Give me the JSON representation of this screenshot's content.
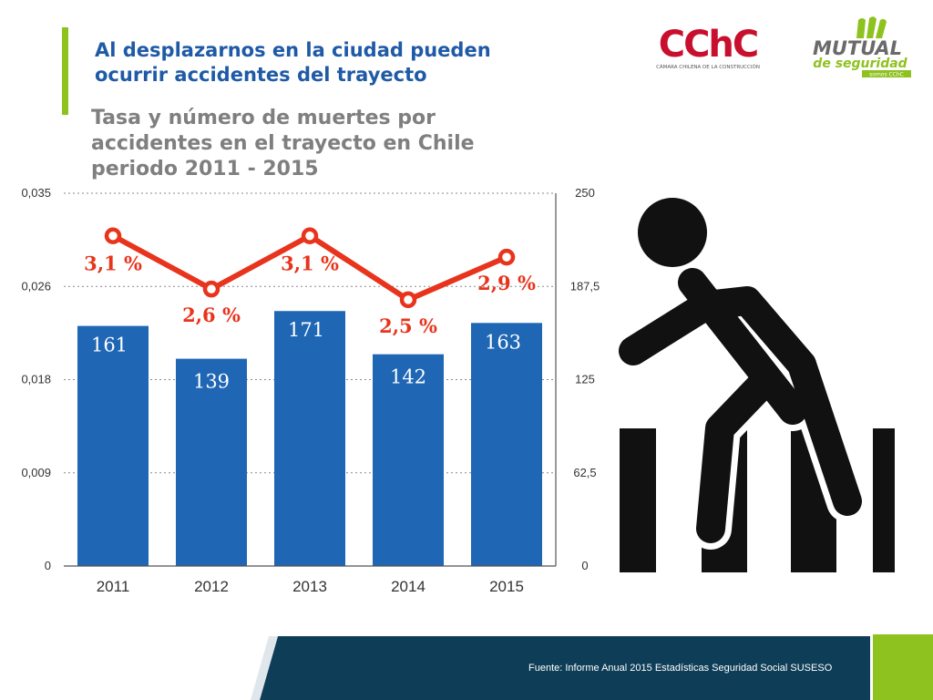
{
  "slide": {
    "title": "Al desplazarnos en la ciudad pueden ocurrir accidentes del trayecto",
    "source": "Fuente: Informe Anual 2015 Estadísticas Seguridad Social SUSESO"
  },
  "logos": {
    "cchc": {
      "text": "CChC",
      "subtitle": "CÁMARA CHILENA DE LA CONSTRUCCIÓN",
      "color": "#c8102e"
    },
    "mutual": {
      "text": "MUTUAL",
      "subtitle": "de seguridad",
      "tagline": "somos CChC",
      "color": "#8dc21f"
    }
  },
  "icons": {
    "illustration": "pedestrian-crossing-icon"
  },
  "colors": {
    "bar": "#1f66b5",
    "line": "#e8341c",
    "accent": "#8dc21f",
    "footer": "#0e3e57"
  },
  "chart_data": {
    "type": "bar",
    "title": "Tasa y número de muertes por accidentes en el trayecto en Chile periodo 2011 - 2015",
    "categories": [
      "2011",
      "2012",
      "2013",
      "2014",
      "2015"
    ],
    "series": [
      {
        "type": "bar",
        "axis": "right",
        "values": [
          161,
          139,
          171,
          142,
          163
        ],
        "labels": [
          "161",
          "139",
          "171",
          "142",
          "163"
        ]
      },
      {
        "type": "line",
        "axis": "left",
        "values": [
          0.031,
          0.026,
          0.031,
          0.025,
          0.029
        ],
        "labels": [
          "3,1 %",
          "2,6 %",
          "3,1 %",
          "2,5 %",
          "2,9 %"
        ]
      }
    ],
    "y_left": {
      "lim": [
        0,
        0.035
      ],
      "ticks": [
        "0",
        "0,009",
        "0,018",
        "0,026",
        "0,035"
      ]
    },
    "y_right": {
      "lim": [
        0,
        250
      ],
      "ticks": [
        "0",
        "62,5",
        "125",
        "187,5",
        "250"
      ]
    },
    "grid": true,
    "legend": "none"
  }
}
